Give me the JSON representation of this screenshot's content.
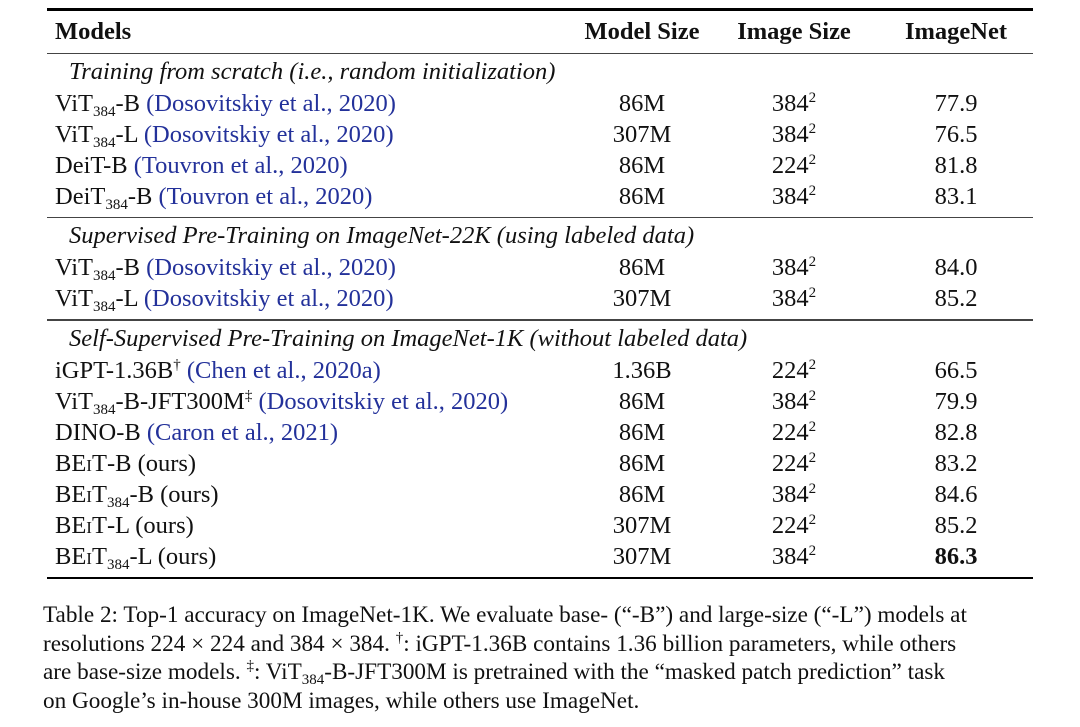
{
  "table": {
    "headers": {
      "model": "Models",
      "model_size": "Model Size",
      "image_size": "Image Size",
      "imagenet": "ImageNet"
    },
    "sections": [
      {
        "title": "Training from scratch (i.e., random initialization)",
        "rows": [
          {
            "name": "ViT",
            "sub": "384",
            "suffix": "-B",
            "cite": "Dosovitskiy et al., 2020",
            "size": "86M",
            "img_base": "384",
            "img_exp": "2",
            "score": "77.9"
          },
          {
            "name": "ViT",
            "sub": "384",
            "suffix": "-L",
            "cite": "Dosovitskiy et al., 2020",
            "size": "307M",
            "img_base": "384",
            "img_exp": "2",
            "score": "76.5"
          },
          {
            "name": "DeiT-B",
            "sub": "",
            "suffix": "",
            "cite": "Touvron et al., 2020",
            "size": "86M",
            "img_base": "224",
            "img_exp": "2",
            "score": "81.8"
          },
          {
            "name": "DeiT",
            "sub": "384",
            "suffix": "-B",
            "cite": "Touvron et al., 2020",
            "size": "86M",
            "img_base": "384",
            "img_exp": "2",
            "score": "83.1"
          }
        ]
      },
      {
        "title": "Supervised Pre-Training on ImageNet-22K (using labeled data)",
        "rows": [
          {
            "name": "ViT",
            "sub": "384",
            "suffix": "-B",
            "cite": "Dosovitskiy et al., 2020",
            "size": "86M",
            "img_base": "384",
            "img_exp": "2",
            "score": "84.0"
          },
          {
            "name": "ViT",
            "sub": "384",
            "suffix": "-L",
            "cite": "Dosovitskiy et al., 2020",
            "size": "307M",
            "img_base": "384",
            "img_exp": "2",
            "score": "85.2"
          }
        ]
      },
      {
        "title": "Self-Supervised Pre-Training on ImageNet-1K (without labeled data)",
        "rows": [
          {
            "name": "iGPT-1.36B",
            "mark": "†",
            "cite": "Chen et al., 2020a",
            "size": "1.36B",
            "img_base": "224",
            "img_exp": "2",
            "score": "66.5"
          },
          {
            "name": "ViT",
            "sub": "384",
            "suffix": "-B-JFT300M",
            "mark": "‡",
            "cite": "Dosovitskiy et al., 2020",
            "size": "86M",
            "img_base": "384",
            "img_exp": "2",
            "score": "79.9"
          },
          {
            "name": "DINO-B",
            "cite": "Caron et al., 2021",
            "size": "86M",
            "img_base": "224",
            "img_exp": "2",
            "score": "82.8"
          },
          {
            "name": "BEiT",
            "suffix": "-B (ours)",
            "size": "86M",
            "img_base": "224",
            "img_exp": "2",
            "score": "83.2"
          },
          {
            "name": "BEiT",
            "sub": "384",
            "suffix": "-B (ours)",
            "size": "86M",
            "img_base": "384",
            "img_exp": "2",
            "score": "84.6"
          },
          {
            "name": "BEiT",
            "suffix": "-L (ours)",
            "size": "307M",
            "img_base": "224",
            "img_exp": "2",
            "score": "85.2"
          },
          {
            "name": "BEiT",
            "sub": "384",
            "suffix": "-L (ours)",
            "size": "307M",
            "img_base": "384",
            "img_exp": "2",
            "score": "86.3",
            "bold": true
          }
        ]
      }
    ]
  },
  "caption": {
    "l1": "Table 2: Top-1 accuracy on ImageNet-1K. We evaluate base- (“-B”) and large-size (“-L”) models at",
    "l2a": "resolutions 224 × 224 and 384 × 384. ",
    "l2mark": "†",
    "l2b": ": iGPT-1.36B contains 1.36 billion parameters, while others",
    "l3a": "are base-size models. ",
    "l3mark": "‡",
    "l3b": ": ViT",
    "l3sub": "384",
    "l3c": "-B-JFT300M is pretrained with the “masked patch prediction” task",
    "l4": "on Google’s in-house 300M images, while others use ImageNet."
  }
}
